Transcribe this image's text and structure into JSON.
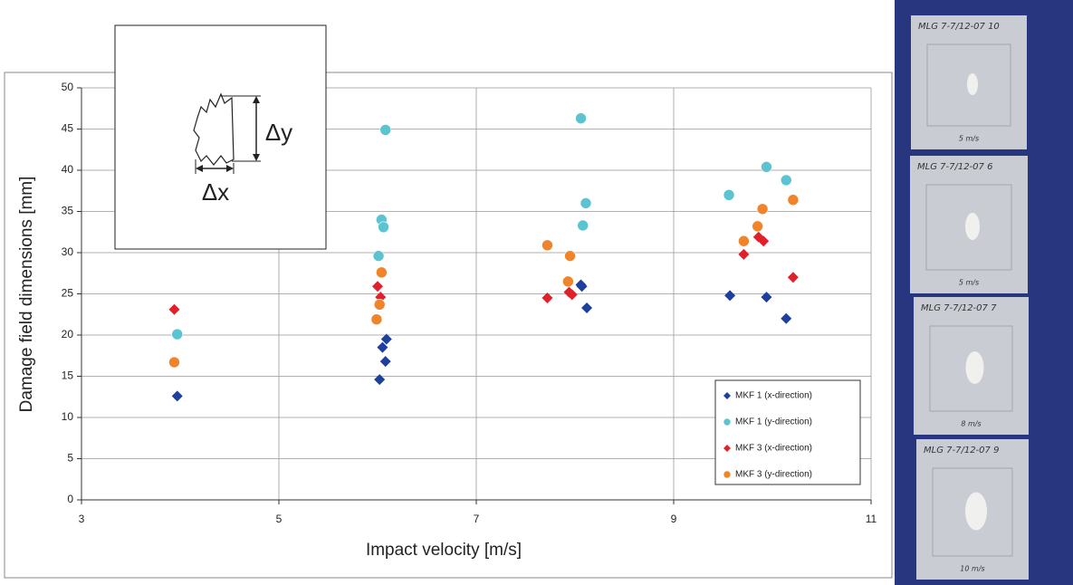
{
  "chart_data": {
    "type": "scatter",
    "x_label": "Impact velocity [m/s]",
    "y_label": "Damage field dimensions [mm]",
    "xlim": [
      3,
      11
    ],
    "xticks": [
      3,
      5,
      7,
      9,
      11
    ],
    "ylim": [
      0,
      50
    ],
    "yticks": [
      0,
      5,
      10,
      15,
      20,
      25,
      30,
      35,
      40,
      45,
      50
    ],
    "grid": true,
    "legend": "lower right",
    "series": [
      {
        "name": "MKF 1 (x-direction)",
        "color": "#1f3f9f",
        "marker": "diamond",
        "x": [
          3.97,
          6.02,
          6.05,
          6.08,
          6.09,
          8.07,
          8.06,
          8.12,
          9.57,
          9.94,
          10.14
        ],
        "values": [
          12.6,
          14.6,
          18.5,
          16.8,
          19.5,
          25.9,
          26.1,
          23.3,
          24.8,
          24.6,
          22.0
        ]
      },
      {
        "name": "MKF 1 (y-direction)",
        "color": "#5bc4d0",
        "marker": "circle",
        "x": [
          3.97,
          6.08,
          6.04,
          6.06,
          6.01,
          8.06,
          8.11,
          8.08,
          9.56,
          9.94,
          10.14
        ],
        "values": [
          20.1,
          44.9,
          34.0,
          33.1,
          29.6,
          46.3,
          36.0,
          33.3,
          37.0,
          40.4,
          38.8
        ]
      },
      {
        "name": "MKF 3 (x-direction)",
        "color": "#e0202a",
        "marker": "diamond",
        "x": [
          3.94,
          6.0,
          6.03,
          7.72,
          7.94,
          7.97,
          9.71,
          9.86,
          9.91,
          10.21
        ],
        "values": [
          23.1,
          25.9,
          24.6,
          24.5,
          25.2,
          24.9,
          29.8,
          31.9,
          31.4,
          27.0
        ]
      },
      {
        "name": "MKF 3 (y-direction)",
        "color": "#f0842a",
        "marker": "circle",
        "x": [
          3.94,
          5.99,
          6.02,
          6.04,
          7.72,
          7.95,
          7.93,
          9.71,
          9.85,
          9.9,
          10.21
        ],
        "values": [
          16.7,
          21.9,
          23.7,
          27.6,
          30.9,
          29.6,
          26.5,
          31.4,
          33.2,
          35.3,
          36.4
        ]
      }
    ]
  },
  "inset": {
    "dx_label": "Δx",
    "dy_label": "Δy"
  },
  "photo_panel": {
    "labels": [
      "MLG 7-7/12-07 10",
      "MLG 7-7/12-07 6",
      "MLG 7-7/12-07 7",
      "MLG 7-7/12-07 9"
    ],
    "captions": [
      "5 m/s",
      "5 m/s",
      "8 m/s",
      "10 m/s"
    ]
  }
}
